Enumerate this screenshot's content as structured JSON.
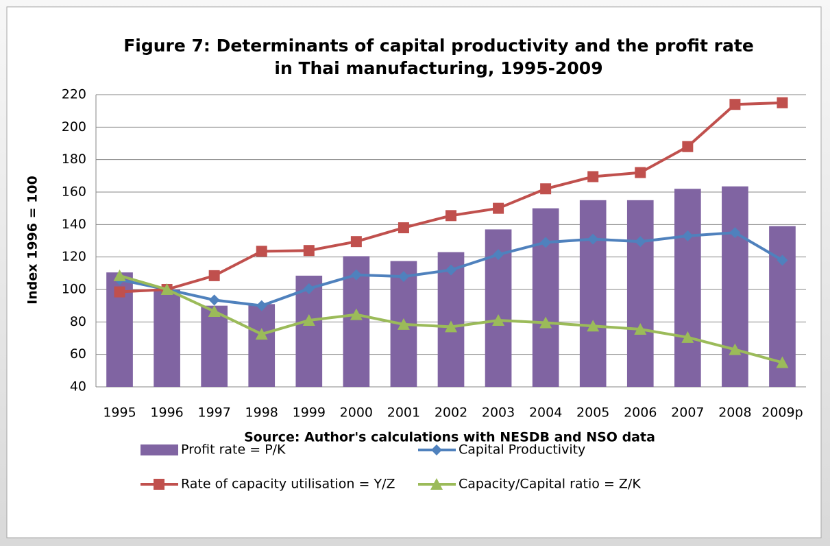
{
  "chart_data": {
    "type": "bar-line",
    "title": "Figure 7: Determinants of capital productivity and the profit rate in Thai manufacturing, 1995-2009",
    "x_label": "Source: Author's calculations with NESDB and NSO data",
    "y_label": "Index 1996 = 100",
    "categories": [
      "1995",
      "1996",
      "1997",
      "1998",
      "1999",
      "2000",
      "2001",
      "2002",
      "2003",
      "2004",
      "2005",
      "2006",
      "2007",
      "2008",
      "2009p"
    ],
    "series": [
      {
        "name": "Profit rate = P/K",
        "type": "bar",
        "color": "#8064a2",
        "values": [
          110.5,
          100,
          90,
          91,
          108.5,
          120.5,
          117.5,
          123,
          137,
          150,
          155,
          155,
          162,
          163.5,
          139
        ]
      },
      {
        "name": "Capital Productivity",
        "type": "line",
        "marker": "diamond",
        "color": "#4f81bd",
        "values": [
          106,
          100,
          93.5,
          90,
          100.5,
          109,
          108,
          112,
          121.5,
          129,
          131,
          129.5,
          133,
          135,
          118
        ]
      },
      {
        "name": "Rate of capacity utilisation = Y/Z",
        "type": "line",
        "marker": "square",
        "color": "#c0504d",
        "values": [
          98.5,
          100,
          108.5,
          123.5,
          124,
          129.5,
          138,
          145.5,
          150,
          162,
          169.5,
          172,
          188,
          214,
          215
        ]
      },
      {
        "name": "Capacity/Capital ratio = Z/K",
        "type": "line",
        "marker": "triangle",
        "color": "#9bbb59",
        "values": [
          108.5,
          100,
          86.5,
          72.5,
          81,
          84.5,
          78.5,
          77,
          81,
          79.5,
          77.5,
          75.5,
          70.5,
          63,
          55
        ]
      }
    ],
    "ylim": [
      40,
      220
    ],
    "yticks": [
      40,
      60,
      80,
      100,
      120,
      140,
      160,
      180,
      200,
      220
    ],
    "grid": true
  }
}
